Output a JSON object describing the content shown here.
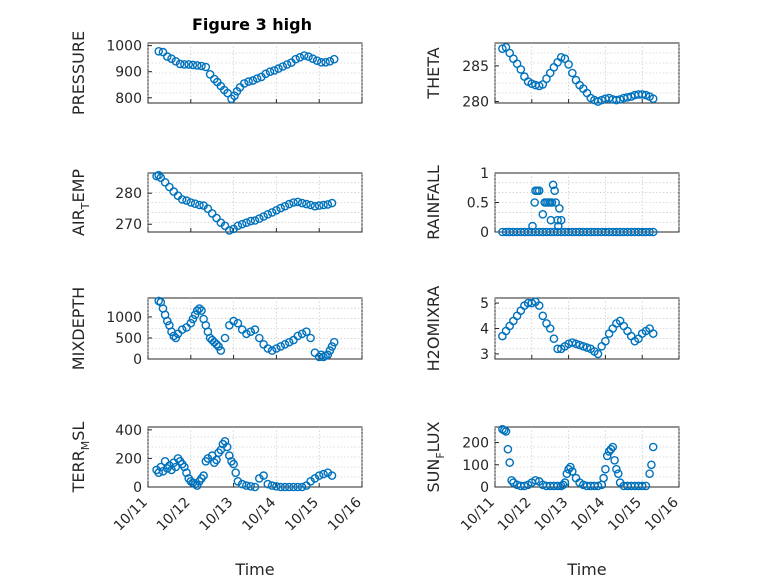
{
  "figure": {
    "title": "Figure 3 high",
    "marker_color": "#0072BD",
    "axis_color": "#262626"
  },
  "time_ticks": [
    "10/11",
    "10/12",
    "10/13",
    "10/14",
    "10/15",
    "10/16"
  ],
  "chart_data": [
    {
      "type": "scatter",
      "title": "Figure 3 high",
      "ylabel": "PRESSURE",
      "ylim": [
        780,
        1010
      ],
      "yticks": [
        800,
        900,
        1000
      ],
      "xlim": [
        0,
        5
      ],
      "xlabel": "",
      "series": [
        {
          "name": "PRESSURE",
          "x": [
            0.25,
            0.35,
            0.45,
            0.55,
            0.65,
            0.75,
            0.85,
            0.95,
            1.05,
            1.15,
            1.25,
            1.35,
            1.45,
            1.55,
            1.62,
            1.7,
            1.78,
            1.86,
            1.95,
            2.02,
            2.08,
            2.15,
            2.25,
            2.35,
            2.45,
            2.55,
            2.65,
            2.75,
            2.85,
            2.95,
            3.05,
            3.15,
            3.25,
            3.35,
            3.45,
            3.55,
            3.65,
            3.75,
            3.85,
            3.95,
            4.05,
            4.15,
            4.25,
            4.35
          ],
          "y": [
            978,
            975,
            958,
            950,
            940,
            930,
            928,
            928,
            926,
            924,
            922,
            918,
            890,
            872,
            860,
            845,
            830,
            818,
            796,
            808,
            825,
            840,
            855,
            862,
            866,
            874,
            880,
            892,
            900,
            905,
            912,
            920,
            928,
            935,
            948,
            955,
            962,
            958,
            950,
            942,
            936,
            936,
            940,
            948
          ]
        }
      ]
    },
    {
      "type": "scatter",
      "ylabel": "THETA",
      "ylim": [
        279.8,
        288.2
      ],
      "yticks": [
        280,
        285
      ],
      "xlim": [
        0,
        5
      ],
      "xlabel": "",
      "series": [
        {
          "name": "THETA",
          "x": [
            0.2,
            0.3,
            0.4,
            0.5,
            0.6,
            0.7,
            0.8,
            0.9,
            1.0,
            1.1,
            1.2,
            1.3,
            1.4,
            1.5,
            1.6,
            1.7,
            1.8,
            1.9,
            2.0,
            2.1,
            2.2,
            2.3,
            2.4,
            2.5,
            2.6,
            2.7,
            2.8,
            2.9,
            3.0,
            3.1,
            3.2,
            3.3,
            3.4,
            3.5,
            3.6,
            3.7,
            3.8,
            3.9,
            4.0,
            4.1,
            4.2,
            4.3
          ],
          "y": [
            287.4,
            287.6,
            286.8,
            286.0,
            285.3,
            284.5,
            283.5,
            282.8,
            282.5,
            282.3,
            282.2,
            282.4,
            283.2,
            284.0,
            284.8,
            285.5,
            286.2,
            286.0,
            285.2,
            284.0,
            283.0,
            282.3,
            281.8,
            281.2,
            280.5,
            280.2,
            280.0,
            280.2,
            280.4,
            280.5,
            280.3,
            280.2,
            280.3,
            280.5,
            280.6,
            280.7,
            280.9,
            281.0,
            281.0,
            280.9,
            280.7,
            280.4
          ]
        }
      ]
    },
    {
      "type": "scatter",
      "ylabel": "AIR_TEMP",
      "ylim": [
        267.5,
        286.5
      ],
      "yticks": [
        270,
        280
      ],
      "xlim": [
        0,
        5
      ],
      "xlabel": "",
      "series": [
        {
          "name": "AIR_TEMP",
          "x": [
            0.2,
            0.25,
            0.3,
            0.4,
            0.5,
            0.6,
            0.7,
            0.8,
            0.9,
            1.0,
            1.1,
            1.2,
            1.3,
            1.4,
            1.5,
            1.6,
            1.7,
            1.8,
            1.9,
            2.0,
            2.1,
            2.2,
            2.3,
            2.4,
            2.5,
            2.6,
            2.7,
            2.8,
            2.9,
            3.0,
            3.1,
            3.2,
            3.3,
            3.4,
            3.5,
            3.6,
            3.7,
            3.8,
            3.9,
            4.0,
            4.1,
            4.2,
            4.3
          ],
          "y": [
            285.5,
            285.8,
            285.0,
            283.5,
            282.0,
            280.5,
            279.2,
            278.0,
            277.6,
            277.0,
            276.6,
            276.2,
            276.0,
            275.0,
            273.5,
            272.0,
            270.5,
            269.5,
            268.0,
            268.5,
            269.5,
            270.0,
            270.5,
            271.0,
            271.2,
            271.8,
            272.5,
            273.2,
            273.8,
            274.5,
            275.2,
            275.8,
            276.5,
            277.0,
            277.2,
            276.8,
            276.5,
            276.2,
            275.8,
            276.0,
            276.2,
            276.4,
            276.8
          ]
        }
      ]
    },
    {
      "type": "scatter",
      "ylabel": "RAINFALL",
      "ylim": [
        0,
        1
      ],
      "yticks": [
        0,
        0.5,
        1
      ],
      "ytick_labels": [
        "0",
        "0.5",
        "1"
      ],
      "xlim": [
        0,
        5
      ],
      "xlabel": "",
      "series": [
        {
          "name": "RAINFALL",
          "x": [
            0.2,
            0.3,
            0.4,
            0.5,
            0.6,
            0.7,
            0.8,
            0.9,
            1.0,
            1.1,
            1.2,
            1.3,
            1.4,
            1.5,
            1.6,
            1.7,
            1.8,
            1.9,
            2.0,
            2.1,
            2.2,
            2.3,
            2.4,
            2.5,
            2.6,
            2.7,
            2.8,
            2.9,
            3.0,
            3.1,
            3.2,
            3.3,
            3.4,
            3.5,
            3.6,
            3.7,
            3.8,
            3.9,
            4.0,
            4.1,
            4.2,
            4.3,
            1.02,
            1.08,
            1.1,
            1.15,
            1.2,
            1.3,
            1.35,
            1.4,
            1.45,
            1.5,
            1.52,
            1.55,
            1.58,
            1.62,
            1.65,
            1.7,
            1.72,
            1.75,
            1.8
          ],
          "y": [
            0,
            0,
            0,
            0,
            0,
            0,
            0,
            0,
            0,
            0,
            0,
            0,
            0,
            0,
            0,
            0,
            0,
            0,
            0,
            0,
            0,
            0,
            0,
            0,
            0,
            0,
            0,
            0,
            0,
            0,
            0,
            0,
            0,
            0,
            0,
            0,
            0,
            0,
            0,
            0,
            0,
            0,
            0.1,
            0.5,
            0.7,
            0.7,
            0.7,
            0.3,
            0.5,
            0.5,
            0.5,
            0.5,
            0.2,
            0.5,
            0.8,
            0.7,
            0.5,
            0.2,
            0.1,
            0.4,
            0.2
          ]
        }
      ]
    },
    {
      "type": "scatter",
      "ylabel": "MIXDEPTH",
      "ylim": [
        0,
        1450
      ],
      "yticks": [
        0,
        500,
        1000
      ],
      "xlim": [
        0,
        5
      ],
      "xlabel": "",
      "series": [
        {
          "name": "MIXDEPTH",
          "x": [
            0.25,
            0.3,
            0.35,
            0.4,
            0.45,
            0.5,
            0.55,
            0.6,
            0.65,
            0.7,
            0.8,
            0.9,
            1.0,
            1.05,
            1.1,
            1.15,
            1.2,
            1.25,
            1.3,
            1.35,
            1.4,
            1.45,
            1.5,
            1.55,
            1.6,
            1.65,
            1.7,
            1.8,
            1.9,
            2.0,
            2.1,
            2.2,
            2.3,
            2.4,
            2.5,
            2.6,
            2.7,
            2.8,
            2.9,
            3.0,
            3.1,
            3.2,
            3.3,
            3.4,
            3.5,
            3.6,
            3.7,
            3.8,
            3.9,
            4.0,
            4.05,
            4.1,
            4.15,
            4.2,
            4.25,
            4.3,
            4.35
          ],
          "y": [
            1380,
            1350,
            1200,
            1050,
            900,
            800,
            650,
            550,
            500,
            600,
            700,
            750,
            850,
            950,
            1050,
            1150,
            1200,
            1150,
            950,
            800,
            650,
            500,
            450,
            400,
            350,
            300,
            200,
            500,
            800,
            900,
            850,
            700,
            600,
            650,
            700,
            500,
            350,
            250,
            200,
            250,
            300,
            350,
            400,
            450,
            550,
            600,
            650,
            500,
            150,
            50,
            100,
            50,
            80,
            100,
            200,
            300,
            400
          ]
        }
      ]
    },
    {
      "type": "scatter",
      "ylabel": "H2OMIXRA",
      "ylim": [
        2.8,
        5.2
      ],
      "yticks": [
        3,
        4,
        5
      ],
      "xlim": [
        0,
        5
      ],
      "xlabel": "",
      "series": [
        {
          "name": "H2OMIXRA",
          "x": [
            0.2,
            0.3,
            0.4,
            0.5,
            0.6,
            0.7,
            0.8,
            0.9,
            1.0,
            1.1,
            1.2,
            1.3,
            1.4,
            1.5,
            1.6,
            1.7,
            1.8,
            1.9,
            2.0,
            2.1,
            2.2,
            2.3,
            2.4,
            2.5,
            2.6,
            2.7,
            2.8,
            2.9,
            3.0,
            3.1,
            3.2,
            3.3,
            3.4,
            3.5,
            3.6,
            3.7,
            3.8,
            3.9,
            4.0,
            4.1,
            4.2,
            4.3
          ],
          "y": [
            3.7,
            3.9,
            4.1,
            4.3,
            4.5,
            4.7,
            4.9,
            5.0,
            5.0,
            5.05,
            4.9,
            4.5,
            4.2,
            4.0,
            3.6,
            3.2,
            3.2,
            3.3,
            3.4,
            3.45,
            3.4,
            3.35,
            3.3,
            3.25,
            3.2,
            3.1,
            3.0,
            3.3,
            3.5,
            3.8,
            4.0,
            4.2,
            4.3,
            4.1,
            3.9,
            3.7,
            3.5,
            3.6,
            3.8,
            3.9,
            4.0,
            3.8
          ]
        }
      ]
    },
    {
      "type": "scatter",
      "ylabel": "TERR_MSL",
      "ylim": [
        0,
        420
      ],
      "yticks": [
        0,
        200,
        400
      ],
      "xlim": [
        0,
        5
      ],
      "xlabel": "Time",
      "series": [
        {
          "name": "TERR_MSL",
          "x": [
            0.2,
            0.25,
            0.3,
            0.35,
            0.4,
            0.45,
            0.5,
            0.55,
            0.6,
            0.65,
            0.7,
            0.75,
            0.8,
            0.85,
            0.9,
            0.95,
            1.0,
            1.05,
            1.1,
            1.15,
            1.2,
            1.25,
            1.3,
            1.35,
            1.4,
            1.5,
            1.55,
            1.6,
            1.65,
            1.7,
            1.75,
            1.8,
            1.85,
            1.9,
            1.95,
            2.0,
            2.05,
            2.1,
            2.2,
            2.3,
            2.4,
            2.5,
            2.6,
            2.7,
            2.8,
            2.9,
            3.0,
            3.1,
            3.2,
            3.3,
            3.4,
            3.5,
            3.6,
            3.7,
            3.8,
            3.9,
            4.0,
            4.1,
            4.2,
            4.3
          ],
          "y": [
            120,
            100,
            140,
            110,
            180,
            130,
            150,
            120,
            170,
            140,
            200,
            180,
            160,
            140,
            100,
            60,
            40,
            30,
            20,
            10,
            40,
            60,
            80,
            180,
            200,
            220,
            170,
            190,
            240,
            260,
            300,
            320,
            280,
            220,
            180,
            160,
            100,
            40,
            20,
            10,
            5,
            0,
            60,
            80,
            20,
            10,
            5,
            0,
            0,
            0,
            0,
            0,
            0,
            10,
            40,
            60,
            80,
            90,
            100,
            80
          ]
        }
      ]
    },
    {
      "type": "scatter",
      "ylabel": "SUN_FLUX",
      "ylim": [
        0,
        270
      ],
      "yticks": [
        0,
        100,
        200
      ],
      "xlim": [
        0,
        5
      ],
      "xlabel": "Time",
      "series": [
        {
          "name": "SUN_FLUX",
          "x": [
            0.2,
            0.25,
            0.3,
            0.35,
            0.4,
            0.45,
            0.5,
            0.6,
            0.7,
            0.8,
            0.9,
            1.0,
            1.1,
            1.2,
            1.3,
            1.4,
            1.5,
            1.6,
            1.7,
            1.8,
            1.85,
            1.9,
            1.95,
            2.0,
            2.05,
            2.1,
            2.2,
            2.3,
            2.4,
            2.5,
            2.6,
            2.7,
            2.8,
            2.9,
            2.95,
            3.0,
            3.05,
            3.1,
            3.15,
            3.2,
            3.25,
            3.3,
            3.35,
            3.4,
            3.5,
            3.6,
            3.7,
            3.8,
            3.9,
            4.0,
            4.1,
            4.2,
            4.25,
            4.3
          ],
          "y": [
            260,
            255,
            250,
            170,
            110,
            30,
            20,
            10,
            5,
            5,
            10,
            20,
            30,
            25,
            10,
            5,
            5,
            5,
            5,
            5,
            10,
            20,
            60,
            80,
            90,
            70,
            40,
            20,
            10,
            5,
            5,
            5,
            5,
            10,
            40,
            80,
            140,
            160,
            170,
            180,
            120,
            80,
            60,
            20,
            5,
            5,
            5,
            5,
            5,
            5,
            5,
            60,
            100,
            180
          ]
        }
      ]
    }
  ]
}
